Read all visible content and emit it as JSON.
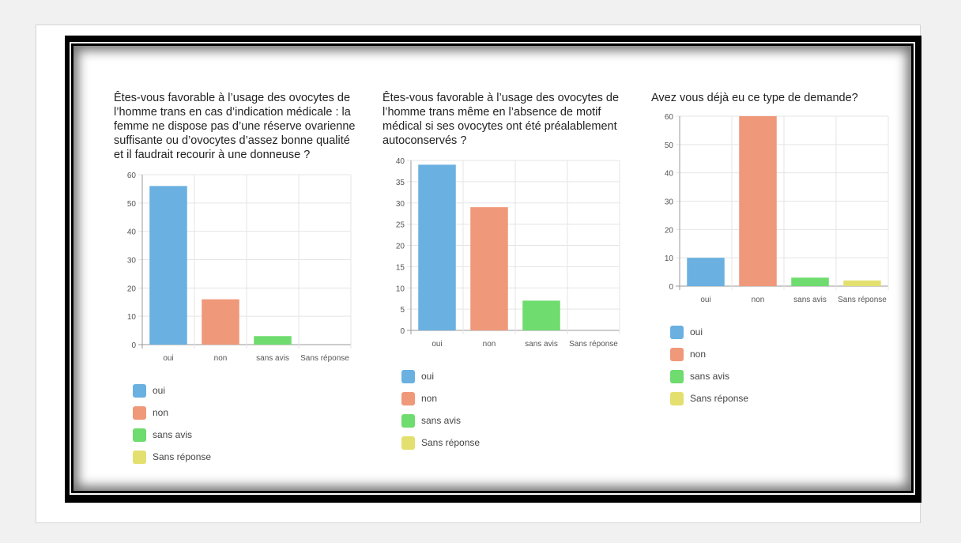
{
  "colors": {
    "oui": "#6ab0e0",
    "non": "#f0987a",
    "sans_avis": "#6edc6e",
    "sans_reponse": "#e3e070"
  },
  "legend_labels": [
    "oui",
    "non",
    "sans avis",
    "Sans réponse"
  ],
  "chart_data": [
    {
      "type": "bar",
      "title": "Êtes-vous favorable à l’usage des ovocytes de l’homme trans en cas d’indication médicale : la femme ne dispose pas d’une réserve ovarienne suffisante ou d’ovocytes d’assez bonne qualité et il faudrait recourir à une donneuse ?",
      "title_lines": [
        "Êtes-vous favorable à l’usage des ovocytes de",
        "l’homme trans en cas d’indication médicale : la",
        "femme ne dispose pas d’une réserve ovarienne",
        "suffisante ou d’ovocytes d’assez bonne qualité",
        "et il faudrait recourir à une donneuse ?"
      ],
      "categories": [
        "oui",
        "non",
        "sans avis",
        "Sans réponse"
      ],
      "values": [
        56,
        16,
        3,
        0
      ],
      "yticks": [
        0,
        10,
        20,
        30,
        40,
        50,
        60
      ],
      "ylim": [
        0,
        60
      ],
      "grid": true,
      "legend": "bottom-left"
    },
    {
      "type": "bar",
      "title": "Êtes-vous favorable à l’usage des ovocytes de l’homme trans même en l’absence de motif médical si ses ovocytes ont été préalablement autoconservés ?",
      "title_lines": [
        "Êtes-vous favorable à l’usage des ovocytes de",
        "l’homme trans même en l’absence de motif",
        "médical si ses ovocytes ont été préalablement",
        "autoconservés ?"
      ],
      "categories": [
        "oui",
        "non",
        "sans avis",
        "Sans réponse"
      ],
      "values": [
        39,
        29,
        7,
        0
      ],
      "yticks": [
        0,
        5,
        10,
        15,
        20,
        25,
        30,
        35,
        40
      ],
      "ylim": [
        0,
        40
      ],
      "grid": true,
      "legend": "bottom-left"
    },
    {
      "type": "bar",
      "title": "Avez vous déjà eu ce type de demande?",
      "title_lines": [
        "Avez vous déjà eu ce type de demande?"
      ],
      "categories": [
        "oui",
        "non",
        "sans avis",
        "Sans réponse"
      ],
      "values": [
        10,
        60,
        3,
        2
      ],
      "yticks": [
        0,
        10,
        20,
        30,
        40,
        50,
        60
      ],
      "ylim": [
        0,
        60
      ],
      "grid": true,
      "legend": "bottom-left"
    }
  ]
}
